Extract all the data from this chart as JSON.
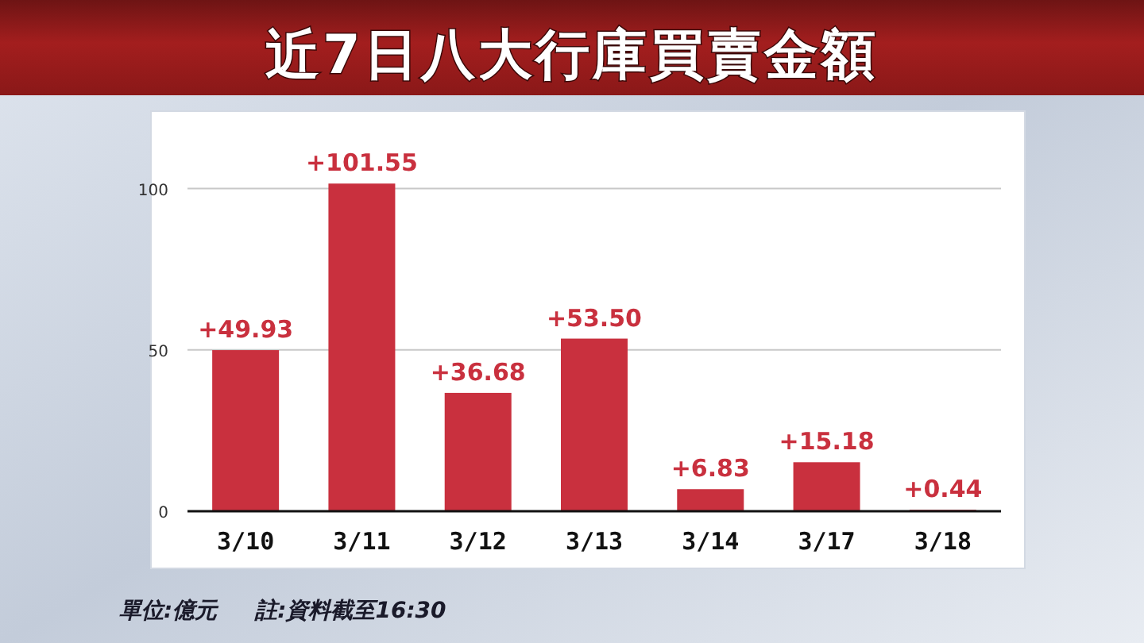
{
  "chart_data": {
    "type": "bar",
    "title": "近7日八大行庫買賣金額",
    "categories": [
      "3/10",
      "3/11",
      "3/12",
      "3/13",
      "3/14",
      "3/17",
      "3/18"
    ],
    "values": [
      49.93,
      101.55,
      36.68,
      53.5,
      6.83,
      15.18,
      0.44
    ],
    "value_labels": [
      "+49.93",
      "+101.55",
      "+36.68",
      "+53.50",
      "+6.83",
      "+15.18",
      "+0.44"
    ],
    "color": "#c9303e",
    "ylim": [
      0,
      124
    ],
    "yticks": [
      0,
      50,
      100
    ],
    "grid": "y",
    "annotations": [
      "單位:億元",
      "註:資料截至16:30"
    ]
  }
}
